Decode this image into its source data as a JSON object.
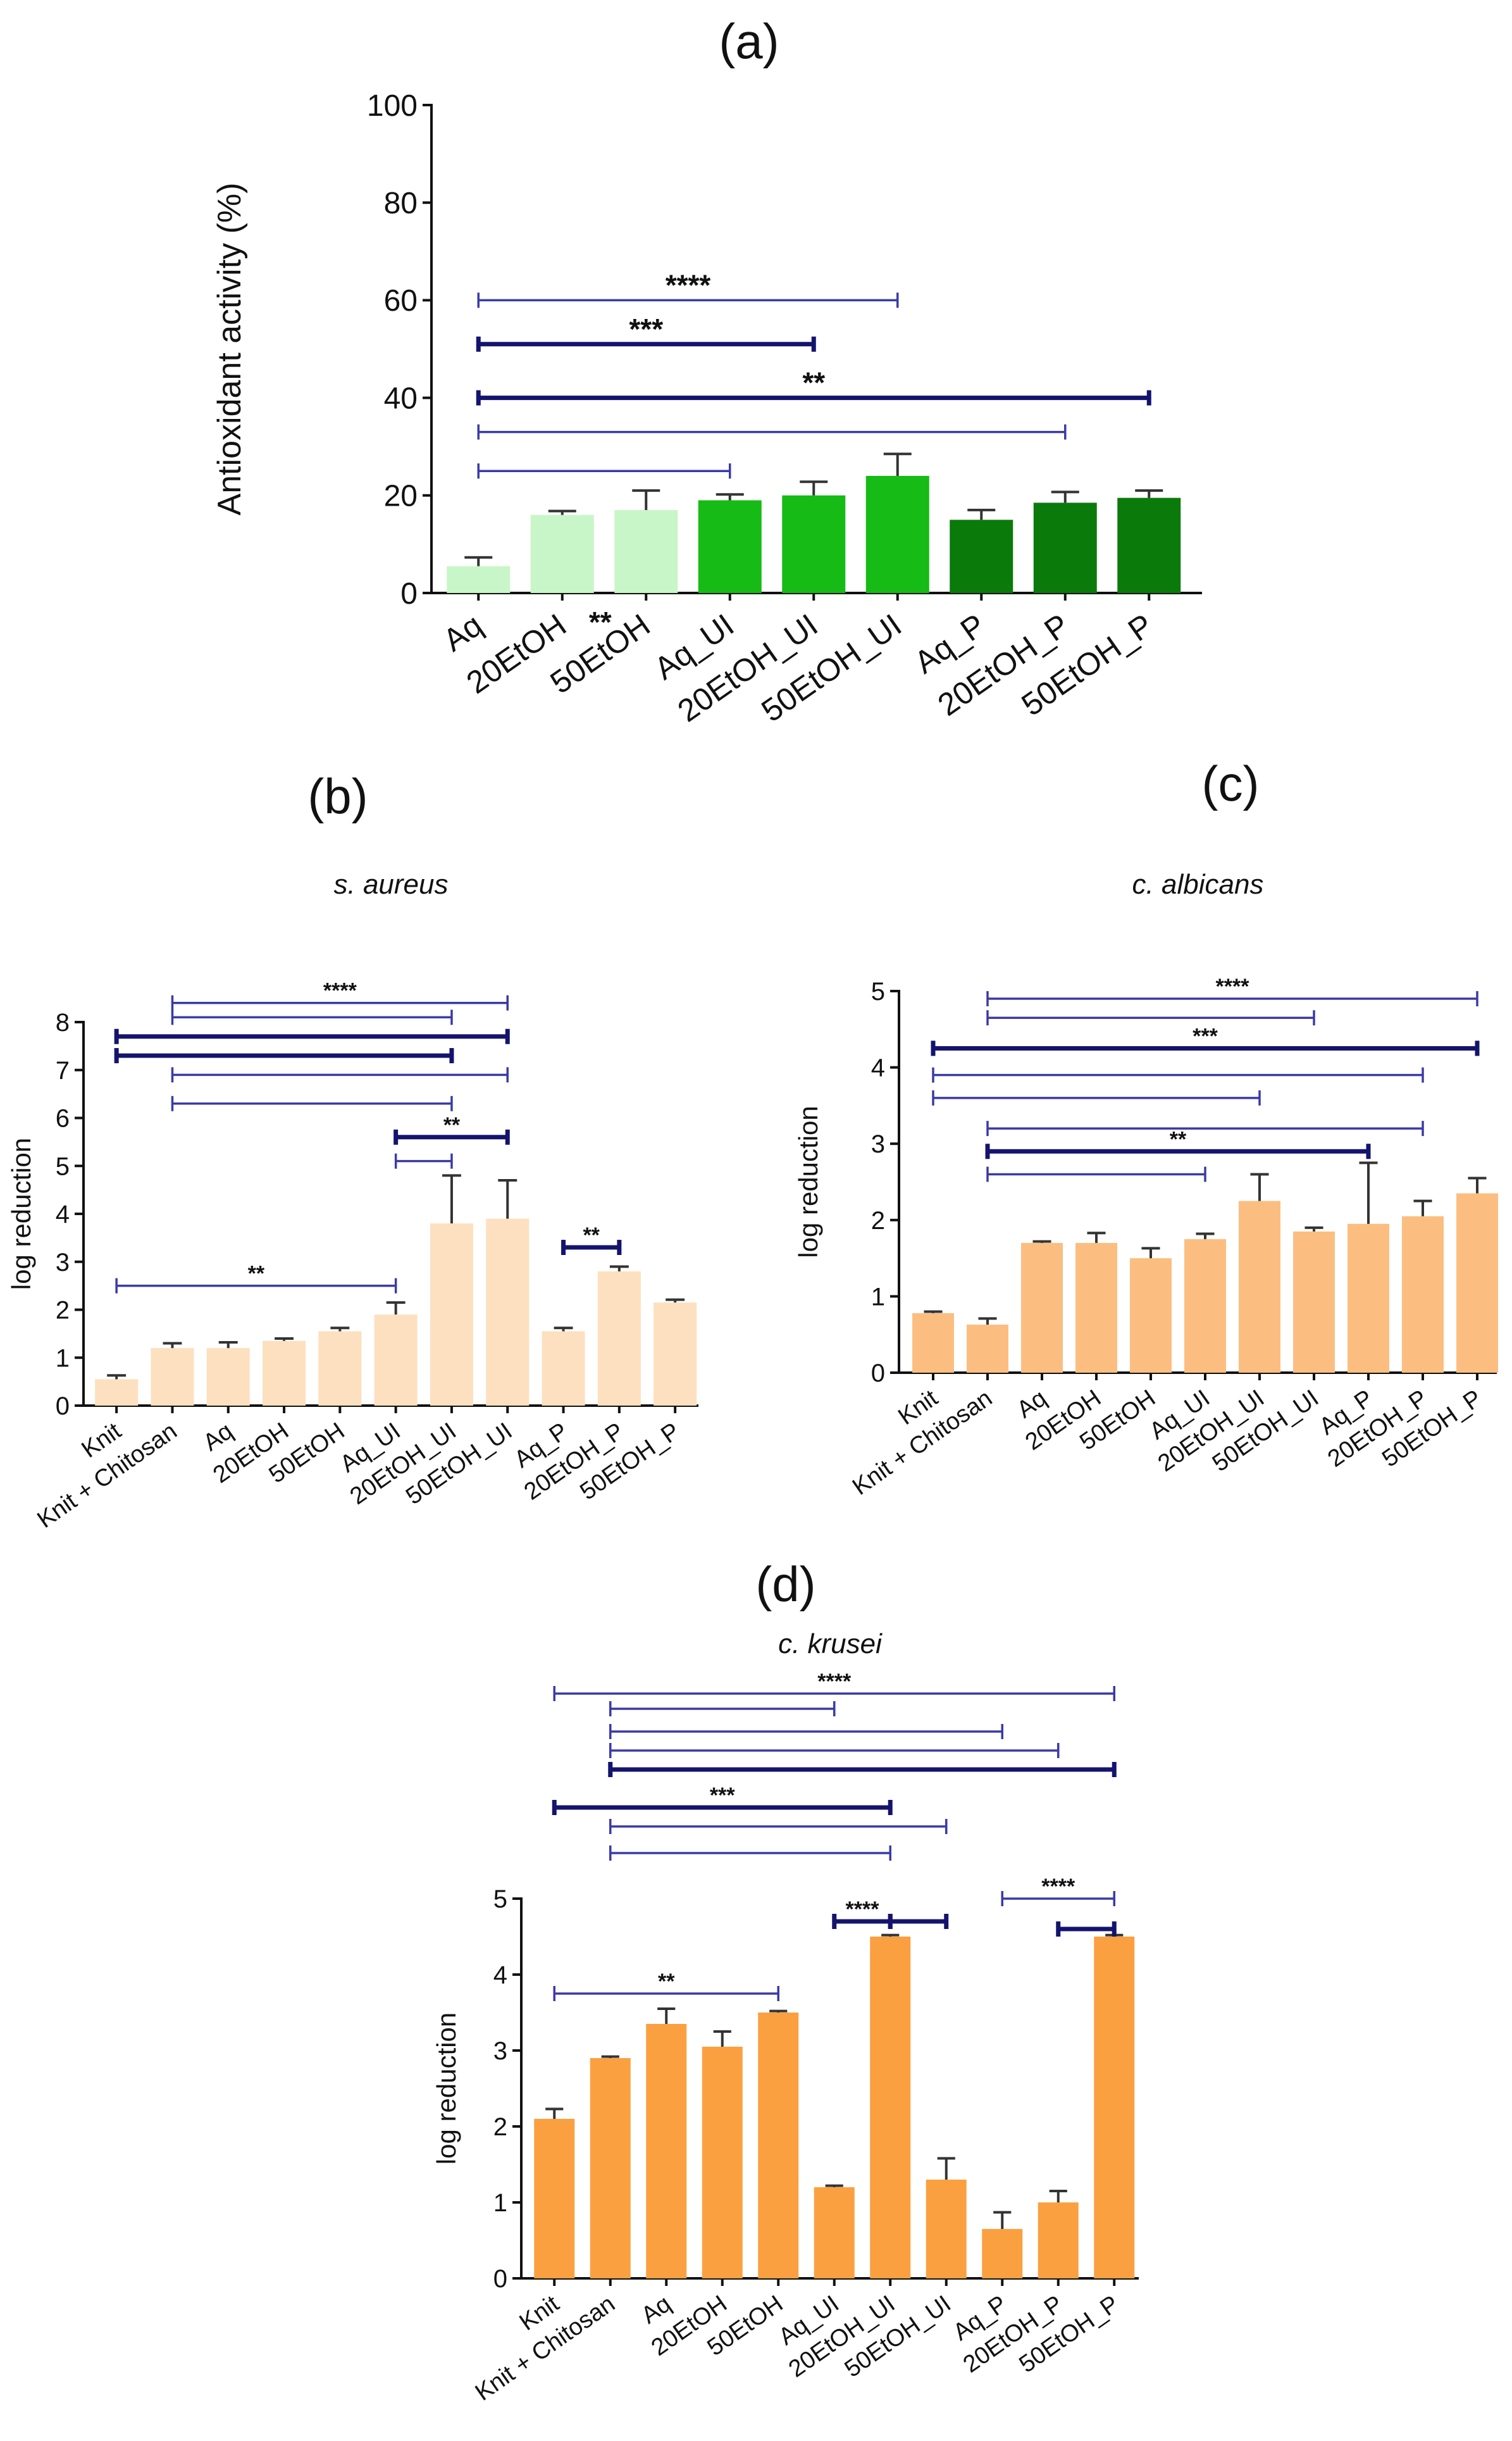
{
  "figure": {
    "panels": [
      "a",
      "b",
      "c",
      "d"
    ]
  },
  "chart_data": [
    {
      "id": "a",
      "type": "bar",
      "panel_label": "(a)",
      "title": "",
      "xlabel": "",
      "ylabel": "Antioxidant activity (%)",
      "ylim": [
        0,
        100
      ],
      "yticks": [
        0,
        20,
        40,
        60,
        80,
        100
      ],
      "grid": false,
      "categories": [
        "Aq",
        "20EtOH",
        "50EtOH",
        "Aq_UI",
        "20EtOH_UI",
        "50EtOH_UI",
        "Aq_P",
        "20EtOH_P",
        "50EtOH_P"
      ],
      "values": [
        5.5,
        16,
        17,
        19,
        20,
        24,
        15,
        18.5,
        19.5
      ],
      "errors": [
        1.8,
        0.8,
        4,
        1.2,
        2.8,
        4.5,
        2,
        2.2,
        1.5
      ],
      "colors": [
        "#c8f6c8",
        "#c8f6c8",
        "#c8f6c8",
        "#16bb16",
        "#16bb16",
        "#16bb16",
        "#0a7a0a",
        "#0a7a0a",
        "#0a7a0a"
      ],
      "annotations": [
        {
          "from": 0,
          "to": 5,
          "y": 60,
          "label": "****",
          "weight": "thin"
        },
        {
          "from": 0,
          "to": 4,
          "y": 51,
          "label": "***",
          "weight": "bold"
        },
        {
          "from": 0,
          "to": 8,
          "y": 40,
          "label": "**",
          "weight": "bold"
        },
        {
          "from": 0,
          "to": 7,
          "y": 33,
          "label": "",
          "weight": "thin"
        },
        {
          "from": 0,
          "to": 3,
          "y": 25,
          "label": "",
          "weight": "thin"
        }
      ],
      "bar_marks": [
        {
          "index": 1,
          "label": "**"
        }
      ]
    },
    {
      "id": "b",
      "type": "bar",
      "panel_label": "(b)",
      "title": "s. aureus",
      "xlabel": "",
      "ylabel": "log reduction",
      "ylim": [
        0,
        8
      ],
      "yticks": [
        0,
        1,
        2,
        3,
        4,
        5,
        6,
        7,
        8
      ],
      "grid": false,
      "categories": [
        "Knit",
        "Knit + Chitosan",
        "Aq",
        "20EtOH",
        "50EtOH",
        "Aq_UI",
        "20EtOH_UI",
        "50EtOH_UI",
        "Aq_P",
        "20EtOH_P",
        "50EtOH_P"
      ],
      "values": [
        0.55,
        1.2,
        1.2,
        1.35,
        1.55,
        1.9,
        3.8,
        3.9,
        1.55,
        2.8,
        2.15
      ],
      "errors": [
        0.08,
        0.1,
        0.12,
        0.05,
        0.07,
        0.25,
        1.0,
        0.8,
        0.07,
        0.1,
        0.06
      ],
      "colors": [
        "#fde0bf",
        "#fde0bf",
        "#fde0bf",
        "#fde0bf",
        "#fde0bf",
        "#fde0bf",
        "#fde0bf",
        "#fde0bf",
        "#fde0bf",
        "#fde0bf",
        "#fde0bf"
      ],
      "annotations": [
        {
          "from": 1,
          "to": 7,
          "y": 8.4,
          "label": "****",
          "weight": "thin"
        },
        {
          "from": 1,
          "to": 6,
          "y": 8.1,
          "label": "",
          "weight": "thin"
        },
        {
          "from": 0,
          "to": 7,
          "y": 7.7,
          "label": "",
          "weight": "bold"
        },
        {
          "from": 0,
          "to": 6,
          "y": 7.3,
          "label": "",
          "weight": "bold"
        },
        {
          "from": 1,
          "to": 7,
          "y": 6.9,
          "label": "",
          "weight": "thin"
        },
        {
          "from": 1,
          "to": 6,
          "y": 6.3,
          "label": "",
          "weight": "thin"
        },
        {
          "from": 5,
          "to": 7,
          "y": 5.6,
          "label": "**",
          "weight": "bold"
        },
        {
          "from": 5,
          "to": 6,
          "y": 5.1,
          "label": "",
          "weight": "thin"
        },
        {
          "from": 8,
          "to": 9,
          "y": 3.3,
          "label": "**",
          "weight": "bold"
        },
        {
          "from": 0,
          "to": 5,
          "y": 2.5,
          "label": "**",
          "weight": "thin"
        }
      ],
      "bar_marks": []
    },
    {
      "id": "c",
      "type": "bar",
      "panel_label": "(c)",
      "title": "c. albicans",
      "xlabel": "",
      "ylabel": "log reduction",
      "ylim": [
        0,
        5
      ],
      "yticks": [
        0,
        1,
        2,
        3,
        4,
        5
      ],
      "grid": false,
      "categories": [
        "Knit",
        "Knit + Chitosan",
        "Aq",
        "20EtOH",
        "50EtOH",
        "Aq_UI",
        "20EtOH_UI",
        "50EtOH_UI",
        "Aq_P",
        "20EtOH_P",
        "50EtOH_P"
      ],
      "values": [
        0.78,
        0.63,
        1.7,
        1.7,
        1.5,
        1.75,
        2.25,
        1.85,
        1.95,
        2.05,
        2.35
      ],
      "errors": [
        0.02,
        0.08,
        0.02,
        0.13,
        0.13,
        0.07,
        0.35,
        0.05,
        0.8,
        0.2,
        0.2
      ],
      "colors": [
        "#fcbe80",
        "#fcbe80",
        "#fcbe80",
        "#fcbe80",
        "#fcbe80",
        "#fcbe80",
        "#fcbe80",
        "#fcbe80",
        "#fcbe80",
        "#fcbe80",
        "#fcbe80"
      ],
      "annotations": [
        {
          "from": 1,
          "to": 10,
          "y": 4.9,
          "label": "****",
          "weight": "thin"
        },
        {
          "from": 1,
          "to": 7,
          "y": 4.65,
          "label": "",
          "weight": "thin"
        },
        {
          "from": 0,
          "to": 10,
          "y": 4.25,
          "label": "***",
          "weight": "bold"
        },
        {
          "from": 0,
          "to": 9,
          "y": 3.9,
          "label": "",
          "weight": "thin"
        },
        {
          "from": 0,
          "to": 6,
          "y": 3.6,
          "label": "",
          "weight": "thin"
        },
        {
          "from": 1,
          "to": 9,
          "y": 3.2,
          "label": "",
          "weight": "thin"
        },
        {
          "from": 1,
          "to": 8,
          "y": 2.9,
          "label": "**",
          "weight": "bold"
        },
        {
          "from": 1,
          "to": 5,
          "y": 2.6,
          "label": "",
          "weight": "thin"
        }
      ],
      "bar_marks": []
    },
    {
      "id": "d",
      "type": "bar",
      "panel_label": "(d)",
      "title": "c. krusei",
      "xlabel": "",
      "ylabel": "log reduction",
      "ylim": [
        0,
        5
      ],
      "yticks": [
        0,
        1,
        2,
        3,
        4,
        5
      ],
      "grid": false,
      "categories": [
        "Knit",
        "Knit + Chitosan",
        "Aq",
        "20EtOH",
        "50EtOH",
        "Aq_UI",
        "20EtOH_UI",
        "50EtOH_UI",
        "Aq_P",
        "20EtOH_P",
        "50EtOH_P"
      ],
      "values": [
        2.1,
        2.9,
        3.35,
        3.05,
        3.5,
        1.2,
        4.5,
        1.3,
        0.65,
        1.0,
        4.5
      ],
      "errors": [
        0.13,
        0.02,
        0.2,
        0.2,
        0.02,
        0.02,
        0.02,
        0.28,
        0.22,
        0.15,
        0.02
      ],
      "colors": [
        "#fba040",
        "#fba040",
        "#fba040",
        "#fba040",
        "#fba040",
        "#fba040",
        "#fba040",
        "#fba040",
        "#fba040",
        "#fba040",
        "#fba040"
      ],
      "annotations": [
        {
          "from": 0,
          "to": 10,
          "y": 7.7,
          "label": "****",
          "weight": "thin"
        },
        {
          "from": 1,
          "to": 5,
          "y": 7.5,
          "label": "",
          "weight": "thin"
        },
        {
          "from": 1,
          "to": 8,
          "y": 7.2,
          "label": "",
          "weight": "thin"
        },
        {
          "from": 1,
          "to": 9,
          "y": 6.95,
          "label": "",
          "weight": "thin"
        },
        {
          "from": 1,
          "to": 10,
          "y": 6.7,
          "label": "",
          "weight": "bold"
        },
        {
          "from": 0,
          "to": 6,
          "y": 6.2,
          "label": "***",
          "weight": "bold"
        },
        {
          "from": 1,
          "to": 7,
          "y": 5.95,
          "label": "",
          "weight": "thin"
        },
        {
          "from": 1,
          "to": 6,
          "y": 5.6,
          "label": "",
          "weight": "thin"
        },
        {
          "from": 5,
          "to": 6,
          "y": 4.7,
          "label": "****",
          "weight": "bold"
        },
        {
          "from": 6,
          "to": 7,
          "y": 4.7,
          "label": "",
          "weight": "bold"
        },
        {
          "from": 8,
          "to": 10,
          "y": 5.0,
          "label": "****",
          "weight": "thin"
        },
        {
          "from": 9,
          "to": 10,
          "y": 4.6,
          "label": "",
          "weight": "bold"
        },
        {
          "from": 0,
          "to": 4,
          "y": 3.75,
          "label": "**",
          "weight": "thin"
        }
      ],
      "bar_marks": []
    }
  ]
}
